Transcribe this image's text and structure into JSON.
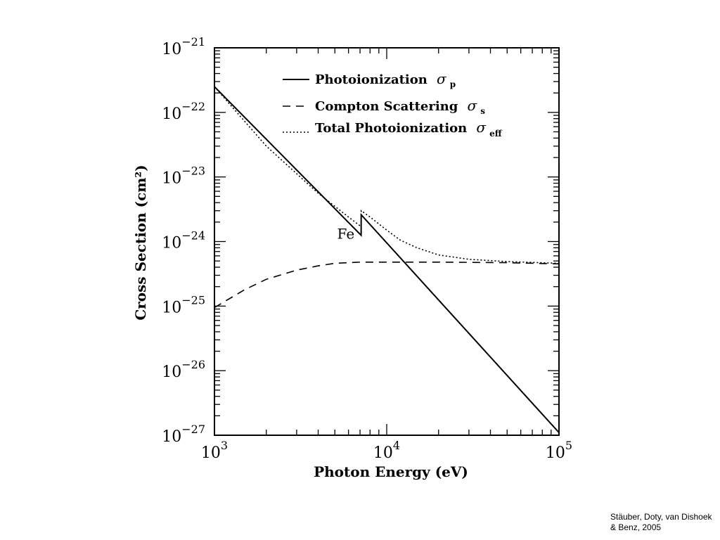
{
  "chart_data": {
    "type": "line",
    "xscale": "log",
    "yscale": "log",
    "xlim": [
      1000,
      100000
    ],
    "ylim": [
      1e-27,
      1e-21
    ],
    "xlabel": "Photon Energy (eV)",
    "ylabel": "Cross Section (cm²)",
    "x_ticks": [
      {
        "base": "10",
        "exp": "3",
        "value": 1000
      },
      {
        "base": "10",
        "exp": "4",
        "value": 10000
      },
      {
        "base": "10",
        "exp": "5",
        "value": 100000
      }
    ],
    "y_ticks": [
      {
        "base": "10",
        "exp": "−21",
        "value": 1e-21
      },
      {
        "base": "10",
        "exp": "−22",
        "value": 1e-22
      },
      {
        "base": "10",
        "exp": "−23",
        "value": 1e-23
      },
      {
        "base": "10",
        "exp": "−24",
        "value": 1e-24
      },
      {
        "base": "10",
        "exp": "−25",
        "value": 1e-25
      },
      {
        "base": "10",
        "exp": "−26",
        "value": 1e-26
      },
      {
        "base": "10",
        "exp": "−27",
        "value": 1e-27
      }
    ],
    "legend_position": "top-right",
    "series": [
      {
        "name": "Photoionization",
        "symbol": "σ",
        "subscript": "p",
        "style": "solid",
        "points": [
          [
            1000,
            2.5e-22
          ],
          [
            7100,
            1.25e-24
          ],
          [
            7112,
            2.6e-24
          ],
          [
            100000,
            1.1e-27
          ]
        ]
      },
      {
        "name": "Compton Scattering",
        "symbol": "σ",
        "subscript": "s",
        "style": "dashed",
        "points": [
          [
            1000,
            9.5e-26
          ],
          [
            1500,
            1.8e-25
          ],
          [
            2000,
            2.6e-25
          ],
          [
            3000,
            3.6e-25
          ],
          [
            4000,
            4.2e-25
          ],
          [
            5000,
            4.6e-25
          ],
          [
            7000,
            4.8e-25
          ],
          [
            10000,
            4.8e-25
          ],
          [
            20000,
            4.8e-25
          ],
          [
            50000,
            4.7e-25
          ],
          [
            100000,
            4.5e-25
          ]
        ]
      },
      {
        "name": "Total Photoionization",
        "symbol": "σ",
        "subscript": "eff",
        "style": "dotted",
        "points": [
          [
            1000,
            2.5e-22
          ],
          [
            2000,
            3e-23
          ],
          [
            4000,
            5.6e-24
          ],
          [
            6000,
            2.4e-24
          ],
          [
            7100,
            1.7e-24
          ],
          [
            7112,
            3e-24
          ],
          [
            8000,
            2.4e-24
          ],
          [
            10000,
            1.5e-24
          ],
          [
            12000,
            1.05e-24
          ],
          [
            15000,
            8e-25
          ],
          [
            20000,
            6.2e-25
          ],
          [
            30000,
            5.3e-25
          ],
          [
            50000,
            4.9e-25
          ],
          [
            100000,
            4.6e-25
          ]
        ]
      }
    ],
    "annotations": [
      {
        "text": "Fe",
        "x": 6500,
        "y": 1.1e-24
      }
    ]
  },
  "credit": {
    "line1": "Stäuber, Doty, van Dishoek",
    "line2": "& Benz, 2005"
  }
}
